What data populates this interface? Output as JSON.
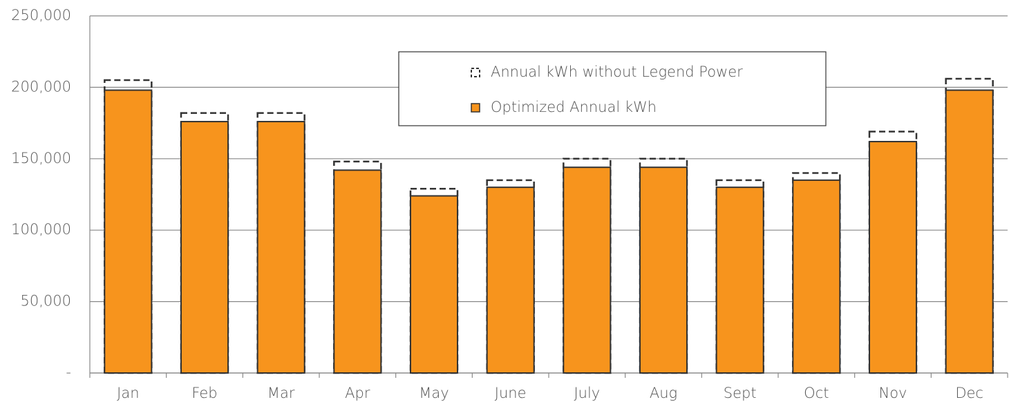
{
  "chart_data": {
    "type": "bar",
    "categories": [
      "Jan",
      "Feb",
      "Mar",
      "Apr",
      "May",
      "June",
      "July",
      "Aug",
      "Sept",
      "Oct",
      "Nov",
      "Dec"
    ],
    "series": [
      {
        "name": "Annual kWh without Legend Power",
        "color": "#333333",
        "values": [
          205000,
          182000,
          182000,
          148000,
          129000,
          135000,
          150000,
          150000,
          135000,
          140000,
          169000,
          206000
        ]
      },
      {
        "name": "Optimized Annual kWh",
        "color": "#f7941d",
        "values": [
          198000,
          176000,
          176000,
          142000,
          124000,
          130000,
          144000,
          144000,
          130000,
          135000,
          162000,
          198000
        ]
      }
    ],
    "ylim": [
      0,
      250000
    ],
    "yticks": [
      {
        "value": 0,
        "label": "-"
      },
      {
        "value": 50000,
        "label": "50,000"
      },
      {
        "value": 100000,
        "label": "100,000"
      },
      {
        "value": 150000,
        "label": "150,000"
      },
      {
        "value": 200000,
        "label": "200,000"
      },
      {
        "value": 250000,
        "label": "250,000"
      }
    ],
    "grid": true
  }
}
